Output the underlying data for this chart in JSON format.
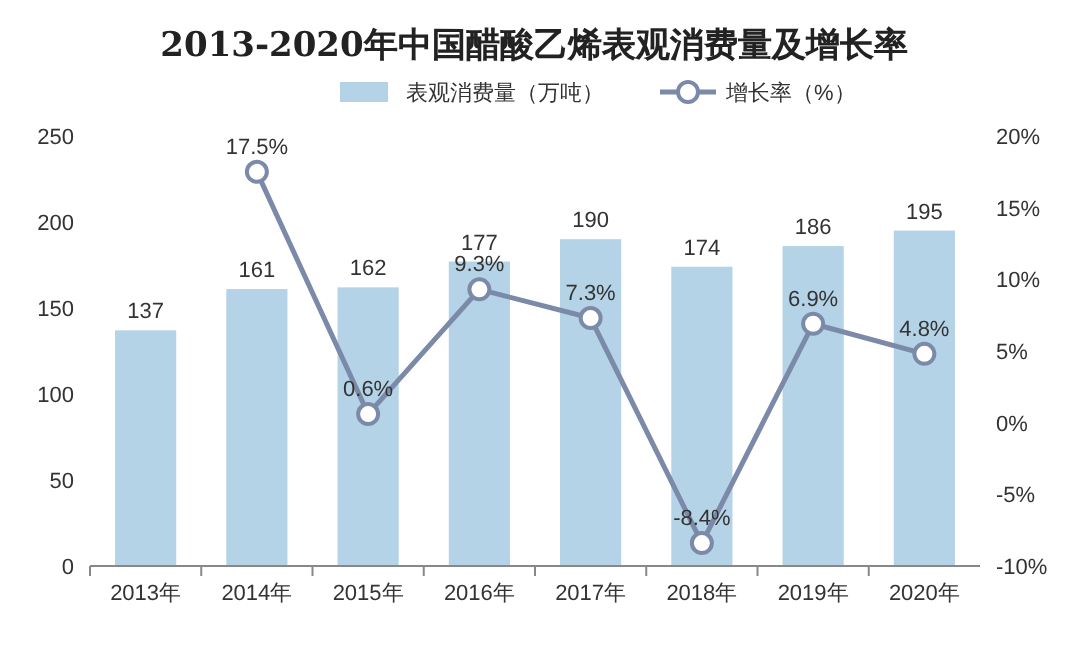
{
  "chart_data": {
    "type": "bar",
    "title": "2013-2020年中国醋酸乙烯表观消费量及增长率",
    "categories": [
      "2013年",
      "2014年",
      "2015年",
      "2016年",
      "2017年",
      "2018年",
      "2019年",
      "2020年"
    ],
    "series": [
      {
        "name": "表观消费量（万吨）",
        "color": "#b4d3e6",
        "values": [
          137,
          161,
          162,
          177,
          190,
          174,
          186,
          195
        ],
        "value_labels": [
          "137",
          "161",
          "162",
          "177",
          "190",
          "174",
          "186",
          "195"
        ]
      },
      {
        "name": "增长率（%）",
        "type": "line",
        "axis": "y2",
        "color": "#7b8aa8",
        "values": [
          null,
          17.5,
          0.6,
          9.3,
          7.3,
          -8.4,
          6.9,
          4.8
        ],
        "value_labels": [
          null,
          "17.5%",
          "0.6%",
          "9.3%",
          "7.3%",
          "-8.4%",
          "6.9%",
          "4.8%"
        ]
      }
    ],
    "ylim": [
      0,
      250
    ],
    "yticks": [
      0,
      50,
      100,
      150,
      200,
      250
    ],
    "y2lim": [
      -10,
      20
    ],
    "y2ticks": [
      {
        "value": -10,
        "label": "-10%"
      },
      {
        "value": -5,
        "label": "-5%"
      },
      {
        "value": 0,
        "label": "0%"
      },
      {
        "value": 5,
        "label": "5%"
      },
      {
        "value": 10,
        "label": "10%"
      },
      {
        "value": 15,
        "label": "15%"
      },
      {
        "value": 20,
        "label": "20%"
      }
    ],
    "marker": "circle",
    "legend": "top",
    "grid": false
  }
}
